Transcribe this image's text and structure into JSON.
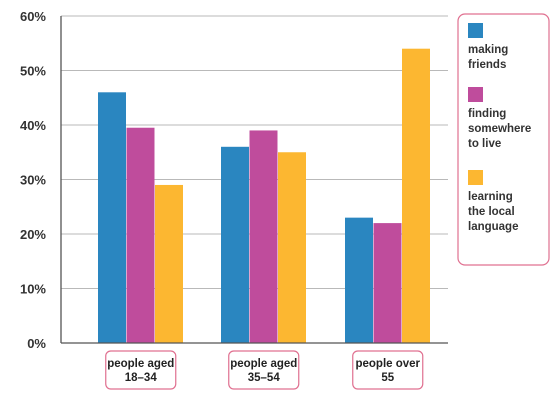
{
  "chart_data": {
    "type": "bar",
    "categories": [
      [
        "people aged",
        "18–34"
      ],
      [
        "people aged",
        "35–54"
      ],
      [
        "people over",
        "55"
      ]
    ],
    "series": [
      {
        "name": [
          "making",
          "friends"
        ],
        "color": "#2a86c0",
        "values": [
          46,
          36,
          23
        ]
      },
      {
        "name": [
          "finding",
          "somewhere",
          "to live"
        ],
        "color": "#bf4c9c",
        "values": [
          39.5,
          39,
          22
        ]
      },
      {
        "name": [
          "learning",
          "the local",
          "language"
        ],
        "color": "#fcb731",
        "values": [
          29,
          35,
          54
        ]
      }
    ],
    "y_ticks": [
      "0%",
      "10%",
      "20%",
      "30%",
      "40%",
      "50%",
      "60%"
    ],
    "ylim": [
      0,
      60
    ],
    "grid": true,
    "legend_position": "right",
    "accent_border": "#e07090"
  }
}
